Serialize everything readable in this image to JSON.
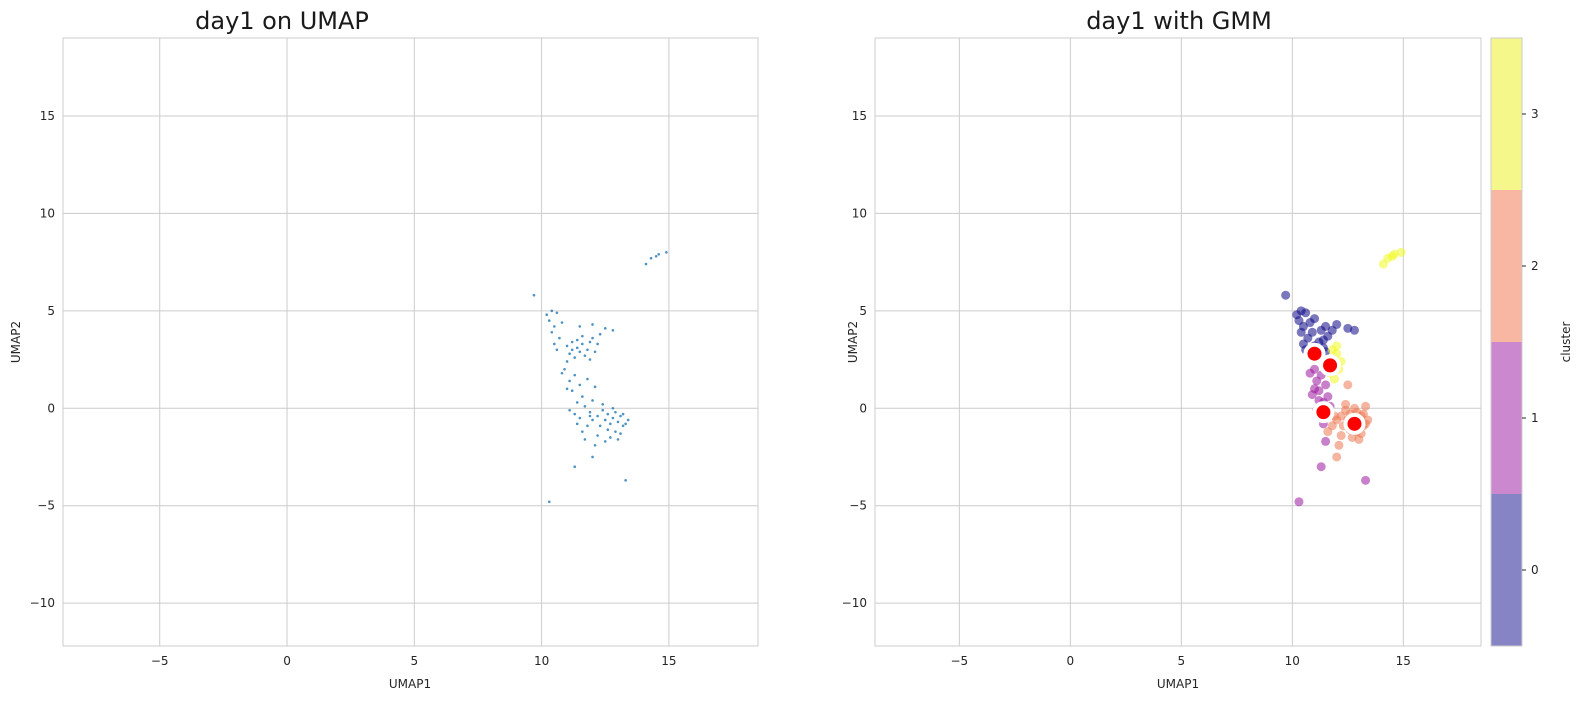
{
  "chart_data": [
    {
      "type": "scatter",
      "title": "day1 on UMAP",
      "xlabel": "UMAP1",
      "ylabel": "UMAP2",
      "xlim": [
        -8.8,
        18.5
      ],
      "ylim": [
        -12.2,
        19.0
      ],
      "xticks": [
        -5,
        0,
        5,
        10,
        15
      ],
      "yticks": [
        -10,
        -5,
        0,
        5,
        10,
        15
      ],
      "grid": true,
      "point_color": "#1f77b4",
      "points": [
        [
          9.7,
          5.8
        ],
        [
          10.3,
          -4.8
        ],
        [
          11.3,
          -3.0
        ],
        [
          12.0,
          -2.5
        ],
        [
          13.3,
          -3.7
        ],
        [
          14.1,
          7.4
        ],
        [
          14.3,
          7.7
        ],
        [
          14.6,
          7.9
        ],
        [
          14.9,
          8.0
        ],
        [
          14.5,
          7.8
        ],
        [
          10.2,
          4.8
        ],
        [
          10.4,
          5.0
        ],
        [
          10.6,
          4.9
        ],
        [
          10.3,
          4.5
        ],
        [
          10.5,
          4.2
        ],
        [
          10.4,
          3.9
        ],
        [
          10.7,
          3.6
        ],
        [
          10.5,
          3.3
        ],
        [
          10.8,
          4.4
        ],
        [
          10.6,
          3.0
        ],
        [
          11.0,
          3.2
        ],
        [
          11.2,
          3.4
        ],
        [
          11.4,
          3.1
        ],
        [
          11.6,
          3.3
        ],
        [
          11.8,
          3.0
        ],
        [
          11.1,
          2.8
        ],
        [
          11.5,
          2.9
        ],
        [
          11.3,
          2.6
        ],
        [
          11.7,
          2.7
        ],
        [
          11.9,
          3.4
        ],
        [
          12.0,
          3.6
        ],
        [
          12.2,
          3.3
        ],
        [
          11.6,
          3.7
        ],
        [
          11.2,
          3.0
        ],
        [
          11.4,
          3.5
        ],
        [
          12.1,
          2.9
        ],
        [
          11.9,
          2.5
        ],
        [
          12.3,
          3.8
        ],
        [
          12.5,
          4.1
        ],
        [
          12.8,
          4.0
        ],
        [
          12.0,
          4.3
        ],
        [
          11.5,
          4.2
        ],
        [
          11.0,
          2.4
        ],
        [
          10.9,
          2.0
        ],
        [
          11.3,
          1.7
        ],
        [
          11.1,
          1.4
        ],
        [
          11.5,
          1.2
        ],
        [
          11.2,
          0.9
        ],
        [
          11.6,
          0.6
        ],
        [
          11.4,
          0.3
        ],
        [
          10.8,
          1.8
        ],
        [
          11.0,
          1.0
        ],
        [
          11.8,
          1.5
        ],
        [
          12.1,
          1.1
        ],
        [
          12.0,
          0.4
        ],
        [
          11.7,
          0.1
        ],
        [
          11.9,
          -0.2
        ],
        [
          12.2,
          -0.4
        ],
        [
          12.4,
          -0.1
        ],
        [
          12.6,
          -0.3
        ],
        [
          12.8,
          -0.5
        ],
        [
          13.0,
          -0.7
        ],
        [
          13.2,
          -0.9
        ],
        [
          13.1,
          -0.4
        ],
        [
          12.9,
          -0.2
        ],
        [
          12.7,
          -0.8
        ],
        [
          12.5,
          -0.6
        ],
        [
          12.3,
          -0.9
        ],
        [
          12.6,
          -1.1
        ],
        [
          12.9,
          -1.2
        ],
        [
          13.1,
          -1.3
        ],
        [
          13.3,
          -0.8
        ],
        [
          13.4,
          -0.6
        ],
        [
          13.2,
          -0.3
        ],
        [
          12.8,
          0.0
        ],
        [
          12.4,
          0.2
        ],
        [
          12.0,
          -0.6
        ],
        [
          11.8,
          -0.9
        ],
        [
          11.6,
          -1.2
        ],
        [
          11.5,
          -0.5
        ],
        [
          11.3,
          -0.3
        ],
        [
          11.1,
          -0.1
        ],
        [
          11.4,
          -0.8
        ],
        [
          12.2,
          -1.4
        ],
        [
          12.7,
          -1.5
        ],
        [
          13.0,
          -1.6
        ],
        [
          12.5,
          -1.7
        ],
        [
          11.7,
          -1.6
        ],
        [
          12.1,
          -1.9
        ],
        [
          11.9,
          -0.4
        ]
      ]
    },
    {
      "type": "scatter",
      "title": "day1 with GMM",
      "xlabel": "UMAP1",
      "ylabel": "UMAP2",
      "xlim": [
        -8.8,
        18.5
      ],
      "ylim": [
        -12.2,
        19.0
      ],
      "xticks": [
        -5,
        0,
        5,
        10,
        15
      ],
      "yticks": [
        -10,
        -5,
        0,
        5,
        10,
        15
      ],
      "grid": true,
      "colorbar": {
        "label": "cluster",
        "ticks": [
          "0",
          "1",
          "2",
          "3"
        ],
        "colors": [
          "#8784c5",
          "#cc88cf",
          "#f7b7a3",
          "#f6f78a"
        ]
      },
      "series": [
        {
          "cluster": 0,
          "color": "#0d0887",
          "points": [
            [
              9.7,
              5.8
            ],
            [
              10.2,
              4.8
            ],
            [
              10.4,
              5.0
            ],
            [
              10.6,
              4.9
            ],
            [
              10.3,
              4.5
            ],
            [
              10.5,
              4.2
            ],
            [
              10.4,
              3.9
            ],
            [
              10.7,
              3.6
            ],
            [
              10.5,
              3.3
            ],
            [
              10.8,
              4.4
            ],
            [
              10.6,
              3.0
            ],
            [
              11.0,
              3.2
            ],
            [
              11.2,
              3.4
            ],
            [
              11.4,
              3.1
            ],
            [
              11.1,
              2.8
            ],
            [
              11.5,
              2.9
            ],
            [
              11.3,
              2.6
            ],
            [
              11.6,
              3.7
            ],
            [
              11.2,
              3.0
            ],
            [
              11.4,
              3.5
            ],
            [
              12.0,
              4.3
            ],
            [
              11.5,
              4.2
            ],
            [
              12.5,
              4.1
            ],
            [
              12.8,
              4.0
            ],
            [
              11.0,
              4.6
            ],
            [
              11.8,
              4.0
            ],
            [
              10.9,
              3.9
            ],
            [
              11.3,
              4.0
            ]
          ]
        },
        {
          "cluster": 1,
          "color": "#9c179e",
          "points": [
            [
              10.3,
              -4.8
            ],
            [
              11.3,
              -3.0
            ],
            [
              13.3,
              -3.7
            ],
            [
              11.5,
              -1.7
            ],
            [
              11.0,
              2.0
            ],
            [
              11.3,
              1.7
            ],
            [
              11.1,
              1.4
            ],
            [
              11.5,
              1.2
            ],
            [
              11.2,
              0.9
            ],
            [
              11.6,
              0.6
            ],
            [
              11.4,
              0.3
            ],
            [
              10.8,
              1.8
            ],
            [
              11.0,
              1.0
            ],
            [
              11.3,
              -0.3
            ],
            [
              11.1,
              -0.1
            ],
            [
              11.4,
              -0.8
            ],
            [
              11.5,
              -0.5
            ],
            [
              11.7,
              0.1
            ],
            [
              11.2,
              0.4
            ],
            [
              10.9,
              0.7
            ]
          ]
        },
        {
          "cluster": 2,
          "color": "#ed7953",
          "points": [
            [
              12.0,
              -2.5
            ],
            [
              12.2,
              -0.4
            ],
            [
              12.4,
              -0.1
            ],
            [
              12.6,
              -0.3
            ],
            [
              12.8,
              -0.5
            ],
            [
              13.0,
              -0.7
            ],
            [
              13.2,
              -0.9
            ],
            [
              13.1,
              -0.4
            ],
            [
              12.9,
              -0.2
            ],
            [
              12.7,
              -0.8
            ],
            [
              12.5,
              -0.6
            ],
            [
              12.3,
              -0.9
            ],
            [
              12.6,
              -1.1
            ],
            [
              12.9,
              -1.2
            ],
            [
              13.1,
              -1.3
            ],
            [
              13.3,
              -0.8
            ],
            [
              13.4,
              -0.6
            ],
            [
              13.2,
              -0.3
            ],
            [
              12.8,
              0.0
            ],
            [
              12.4,
              0.2
            ],
            [
              12.0,
              -0.6
            ],
            [
              11.8,
              -0.9
            ],
            [
              11.6,
              -1.2
            ],
            [
              12.2,
              -1.4
            ],
            [
              12.7,
              -1.5
            ],
            [
              13.0,
              -1.6
            ],
            [
              12.1,
              -1.9
            ],
            [
              11.9,
              -0.4
            ],
            [
              12.5,
              1.2
            ],
            [
              13.3,
              0.1
            ]
          ]
        },
        {
          "cluster": 3,
          "color": "#f0f921",
          "points": [
            [
              14.1,
              7.4
            ],
            [
              14.3,
              7.7
            ],
            [
              14.6,
              7.9
            ],
            [
              14.9,
              8.0
            ],
            [
              14.5,
              7.8
            ],
            [
              11.8,
              3.0
            ],
            [
              12.0,
              2.8
            ],
            [
              11.9,
              2.5
            ],
            [
              12.1,
              2.0
            ],
            [
              11.7,
              1.8
            ],
            [
              11.9,
              1.5
            ],
            [
              12.2,
              2.4
            ],
            [
              11.6,
              2.3
            ],
            [
              12.0,
              3.2
            ]
          ]
        }
      ],
      "centroids": [
        [
          11.0,
          2.8
        ],
        [
          11.7,
          2.2
        ],
        [
          11.4,
          -0.2
        ],
        [
          12.8,
          -0.8
        ]
      ],
      "centroid_color": "#ff0000"
    }
  ]
}
